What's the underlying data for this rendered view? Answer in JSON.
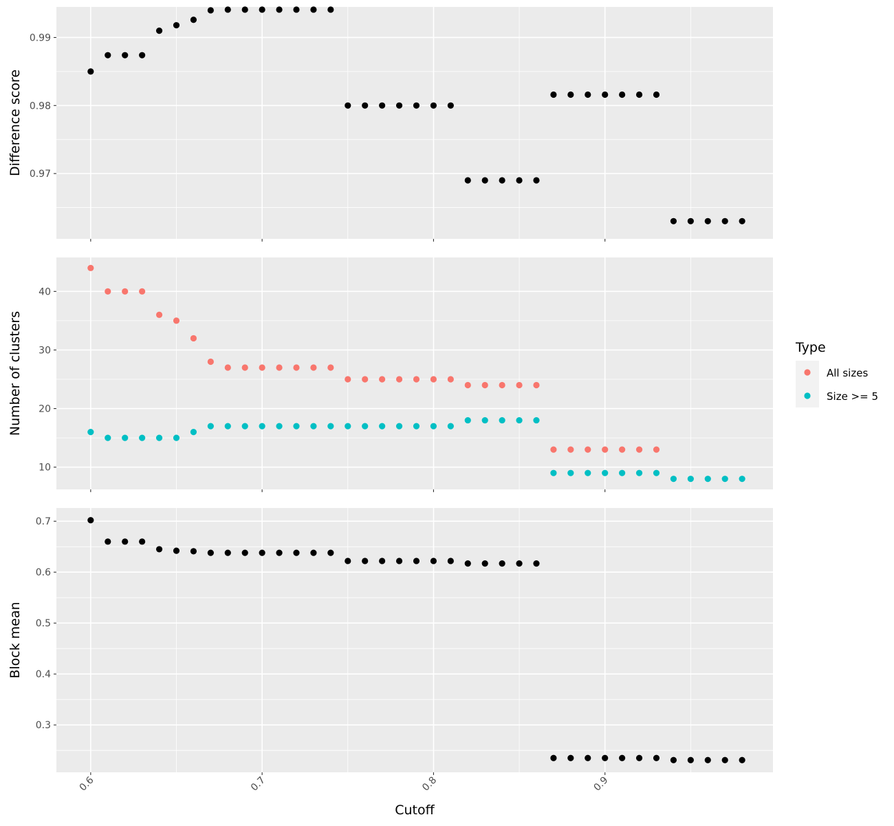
{
  "chart_data": {
    "type": "scatter",
    "xlabel": "Cutoff",
    "xlim": [
      0.58,
      0.998
    ],
    "x_ticks": [
      0.6,
      0.7,
      0.8,
      0.9
    ],
    "x_tick_labels": [
      "0.6",
      "0.7",
      "0.8",
      "0.9"
    ],
    "x_tick_label_rotation_deg": -45,
    "grid": true,
    "background": "#ebebeb",
    "legend": {
      "title": "Type",
      "position": "right",
      "entries": [
        {
          "label": "All sizes",
          "color": "#f8766d"
        },
        {
          "label": "Size >= 5",
          "color": "#00bfc4"
        }
      ]
    },
    "x": [
      0.6,
      0.61,
      0.62,
      0.63,
      0.64,
      0.65,
      0.66,
      0.67,
      0.68,
      0.69,
      0.7,
      0.71,
      0.72,
      0.73,
      0.74,
      0.75,
      0.76,
      0.77,
      0.78,
      0.79,
      0.8,
      0.81,
      0.82,
      0.83,
      0.84,
      0.85,
      0.86,
      0.87,
      0.88,
      0.89,
      0.9,
      0.91,
      0.92,
      0.93,
      0.94,
      0.95,
      0.96,
      0.97,
      0.98
    ],
    "panels": [
      {
        "ylabel": "Difference score",
        "ylim": [
          0.9604,
          0.9945
        ],
        "y_ticks": [
          0.97,
          0.98,
          0.99
        ],
        "y_tick_labels": [
          "0.97",
          "0.98",
          "0.99"
        ],
        "y_minor": [
          0.965,
          0.975,
          0.985
        ],
        "series": [
          {
            "color": "#000000",
            "values": [
              0.985,
              0.9874,
              0.9874,
              0.9874,
              0.991,
              0.9918,
              0.9926,
              0.994,
              0.9941,
              0.9941,
              0.9941,
              0.9941,
              0.9941,
              0.9941,
              0.9941,
              0.98,
              0.98,
              0.98,
              0.98,
              0.98,
              0.98,
              0.98,
              0.969,
              0.969,
              0.969,
              0.969,
              0.969,
              0.9816,
              0.9816,
              0.9816,
              0.9816,
              0.9816,
              0.9816,
              0.9816,
              0.963,
              0.963,
              0.963,
              0.963,
              0.963
            ]
          }
        ]
      },
      {
        "ylabel": "Number of clusters",
        "ylim": [
          6.2,
          45.8
        ],
        "y_ticks": [
          10,
          20,
          30,
          40
        ],
        "y_tick_labels": [
          "10",
          "20",
          "30",
          "40"
        ],
        "y_minor": [
          15,
          25,
          35
        ],
        "series": [
          {
            "name": "All sizes",
            "color": "#f8766d",
            "values": [
              44,
              40,
              40,
              40,
              36,
              35,
              32,
              28,
              27,
              27,
              27,
              27,
              27,
              27,
              27,
              25,
              25,
              25,
              25,
              25,
              25,
              25,
              24,
              24,
              24,
              24,
              24,
              13,
              13,
              13,
              13,
              13,
              13,
              13,
              null,
              null,
              null,
              null,
              null
            ]
          },
          {
            "name": "Size >= 5",
            "color": "#00bfc4",
            "values": [
              16,
              15,
              15,
              15,
              15,
              15,
              16,
              17,
              17,
              17,
              17,
              17,
              17,
              17,
              17,
              17,
              17,
              17,
              17,
              17,
              17,
              17,
              18,
              18,
              18,
              18,
              18,
              9,
              9,
              9,
              9,
              9,
              9,
              9,
              8,
              8,
              8,
              8,
              8
            ]
          }
        ]
      },
      {
        "ylabel": "Block mean",
        "ylim": [
          0.207,
          0.726
        ],
        "y_ticks": [
          0.3,
          0.4,
          0.5,
          0.6,
          0.7
        ],
        "y_tick_labels": [
          "0.3",
          "0.4",
          "0.5",
          "0.6",
          "0.7"
        ],
        "y_minor": [
          0.25,
          0.35,
          0.45,
          0.55,
          0.65
        ],
        "series": [
          {
            "color": "#000000",
            "values": [
              0.702,
              0.66,
              0.66,
              0.66,
              0.645,
              0.642,
              0.641,
              0.638,
              0.638,
              0.638,
              0.638,
              0.638,
              0.638,
              0.638,
              0.638,
              0.622,
              0.622,
              0.622,
              0.622,
              0.622,
              0.622,
              0.622,
              0.617,
              0.617,
              0.617,
              0.617,
              0.617,
              0.235,
              0.235,
              0.235,
              0.235,
              0.235,
              0.235,
              0.235,
              0.231,
              0.231,
              0.231,
              0.231,
              0.231
            ]
          }
        ]
      }
    ]
  }
}
